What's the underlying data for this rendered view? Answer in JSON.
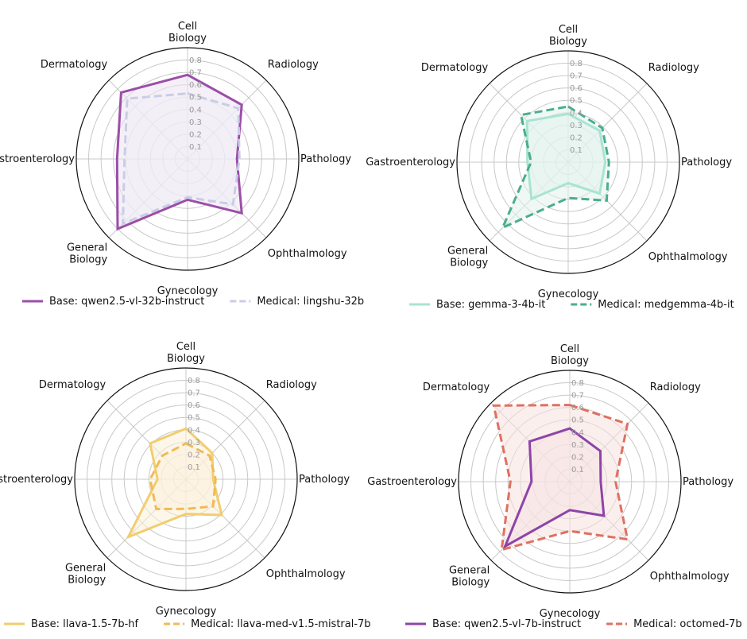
{
  "chart_data": [
    {
      "type": "radar",
      "axes": [
        "Cell\nBiology",
        "Radiology",
        "Pathology",
        "Ophthalmology",
        "Gynecology",
        "General\nBiology",
        "Gastroenterology",
        "Dermatology"
      ],
      "ticks": [
        "0.1",
        "0.2",
        "0.3",
        "0.4",
        "0.5",
        "0.6",
        "0.7",
        "0.8"
      ],
      "rmax": 0.9,
      "grid": true,
      "legend_position": "bottom",
      "series": [
        {
          "name": "Base: qwen2.5-vl-32b-instruct",
          "values": [
            0.68,
            0.62,
            0.4,
            0.62,
            0.33,
            0.8,
            0.57,
            0.76
          ],
          "color": "#9b4ea8",
          "dash": "solid",
          "fill": "#ede4f1"
        },
        {
          "name": "Medical: lingshu-32b",
          "values": [
            0.53,
            0.58,
            0.42,
            0.52,
            0.31,
            0.74,
            0.51,
            0.69
          ],
          "color": "#c9cde6",
          "dash": "dashed",
          "fill": "#efeef8"
        }
      ]
    },
    {
      "type": "radar",
      "axes": [
        "Cell\nBiology",
        "Radiology",
        "Pathology",
        "Ophthalmology",
        "Gynecology",
        "General\nBiology",
        "Gastroenterology",
        "Dermatology"
      ],
      "ticks": [
        "0.1",
        "0.2",
        "0.3",
        "0.4",
        "0.5",
        "0.6",
        "0.7",
        "0.8"
      ],
      "rmax": 0.9,
      "grid": true,
      "legend_position": "bottom",
      "series": [
        {
          "name": "Base: gemma-3-4b-it",
          "values": [
            0.39,
            0.36,
            0.3,
            0.36,
            0.17,
            0.42,
            0.33,
            0.47
          ],
          "color": "#a8e4d3",
          "dash": "solid",
          "fill": "#dff3ec"
        },
        {
          "name": "Medical: medgemma-4b-it",
          "values": [
            0.45,
            0.39,
            0.33,
            0.44,
            0.29,
            0.75,
            0.3,
            0.54
          ],
          "color": "#4aae8e",
          "dash": "dashed",
          "fill": "#e3f2ed"
        }
      ]
    },
    {
      "type": "radar",
      "axes": [
        "Cell\nBiology",
        "Radiology",
        "Pathology",
        "Ophthalmology",
        "Gynecology",
        "General\nBiology",
        "Gastroenterology",
        "Dermatology"
      ],
      "ticks": [
        "0.1",
        "0.2",
        "0.3",
        "0.4",
        "0.5",
        "0.6",
        "0.7",
        "0.8"
      ],
      "rmax": 0.9,
      "grid": true,
      "legend_position": "bottom",
      "series": [
        {
          "name": "Base: llava-1.5-7b-hf",
          "values": [
            0.41,
            0.3,
            0.22,
            0.41,
            0.28,
            0.66,
            0.23,
            0.41
          ],
          "color": "#f2cd6e",
          "dash": "solid",
          "fill": "#fbf0d9"
        },
        {
          "name": "Medical: llava-med-v1.5-mistral-7b",
          "values": [
            0.29,
            0.27,
            0.24,
            0.31,
            0.24,
            0.34,
            0.29,
            0.27
          ],
          "color": "#f0bb55",
          "dash": "dashed",
          "fill": "#fdf0dc"
        }
      ]
    },
    {
      "type": "radar",
      "axes": [
        "Cell\nBiology",
        "Radiology",
        "Pathology",
        "Ophthalmology",
        "Gynecology",
        "General\nBiology",
        "Gastroenterology",
        "Dermatology"
      ],
      "ticks": [
        "0.1",
        "0.2",
        "0.3",
        "0.4",
        "0.5",
        "0.6",
        "0.7",
        "0.8"
      ],
      "rmax": 0.9,
      "grid": true,
      "legend_position": "bottom",
      "series": [
        {
          "name": "Base: qwen2.5-vl-7b-instruct",
          "values": [
            0.43,
            0.35,
            0.25,
            0.39,
            0.23,
            0.74,
            0.31,
            0.46
          ],
          "color": "#8e44a8",
          "dash": "solid",
          "fill": "#f2e3e8"
        },
        {
          "name": "Medical: octomed-7b",
          "values": [
            0.62,
            0.66,
            0.37,
            0.66,
            0.4,
            0.78,
            0.48,
            0.87
          ],
          "color": "#e07060",
          "dash": "dashed",
          "fill": "#f8e2e0"
        }
      ]
    }
  ]
}
